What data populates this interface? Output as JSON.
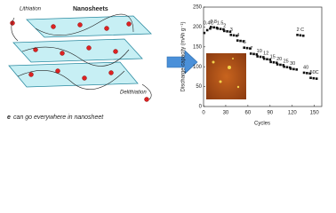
{
  "schematic": {
    "lithiation": "Lithiation",
    "nanosheets": "Nanosheets",
    "delithiation": "Delithiation",
    "caption_symbol": "e",
    "caption_rest": "can go everywhere in nanosheet"
  },
  "chart_data": {
    "type": "scatter",
    "xlabel": "Cycles",
    "ylabel": "Discharge capacity (mAh g⁻¹)",
    "xlim": [
      0,
      160
    ],
    "xticks": [
      0,
      30,
      60,
      90,
      120,
      150
    ],
    "ylim": [
      0,
      250
    ],
    "yticks": [
      0,
      50,
      100,
      150,
      200,
      250
    ],
    "grid": false,
    "x": [
      1,
      5,
      9,
      10,
      14,
      18,
      19,
      23,
      27,
      28,
      32,
      36,
      37,
      41,
      45,
      46,
      50,
      54,
      55,
      59,
      63,
      64,
      68,
      72,
      73,
      77,
      81,
      82,
      86,
      90,
      91,
      95,
      99,
      100,
      104,
      108,
      109,
      113,
      117,
      118,
      122,
      126,
      127,
      131,
      135,
      136,
      140,
      144,
      145,
      149,
      153
    ],
    "series": [
      {
        "color": "#111111",
        "values": [
          185,
          192,
          196,
          200,
          199,
          198,
          196,
          195,
          194,
          190,
          189,
          188,
          180,
          179,
          178,
          166,
          165,
          164,
          148,
          147,
          146,
          133,
          132,
          131,
          126,
          125,
          124,
          120,
          119,
          118,
          112,
          111,
          110,
          106,
          105,
          104,
          100,
          99,
          98,
          95,
          94,
          93,
          180,
          179,
          178,
          85,
          84,
          83,
          72,
          71,
          70
        ]
      }
    ],
    "annotations": [
      "0.4C",
      "0.8",
      "1.5",
      "2",
      "3",
      "4",
      "5",
      "7",
      "10",
      "12",
      "15",
      "20",
      "25",
      "30",
      "2 C",
      "40",
      "50C"
    ]
  }
}
